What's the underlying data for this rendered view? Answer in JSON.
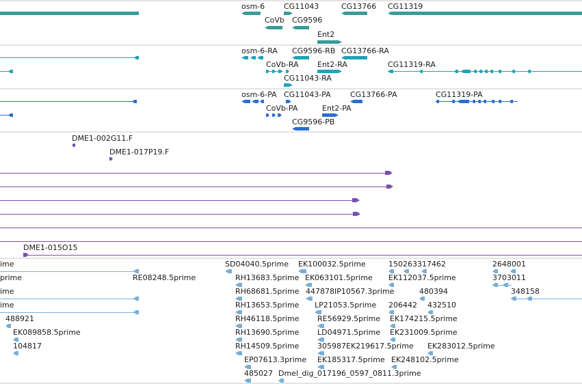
{
  "colors": {
    "gene": "#3a9a98",
    "mrna": "#1ea3b9",
    "protein": "#2a6fd1",
    "clone": "#7b4fae",
    "est": "#7aaed4",
    "divider": "#c8c8c8"
  },
  "tracks": [
    {
      "name": "gene-track",
      "color": "gene",
      "labels": [
        {
          "id": "g-osm6",
          "text": "osm-6"
        },
        {
          "id": "g-cg11043",
          "text": "CG11043"
        },
        {
          "id": "g-cg13766",
          "text": "CG13766"
        },
        {
          "id": "g-cg11319",
          "text": "CG11319"
        },
        {
          "id": "g-covb",
          "text": "CoVb"
        },
        {
          "id": "g-cg9596",
          "text": "CG9596"
        },
        {
          "id": "g-ent2",
          "text": "Ent2"
        }
      ]
    },
    {
      "name": "transcript-track",
      "color": "mrna",
      "labels": [
        {
          "id": "t-osm6",
          "text": "osm-6-RA"
        },
        {
          "id": "t-cg9596",
          "text": "CG9596-RB"
        },
        {
          "id": "t-cg13766",
          "text": "CG13766-RA"
        },
        {
          "id": "t-covb",
          "text": "CoVb-RA"
        },
        {
          "id": "t-ent2",
          "text": "Ent2-RA"
        },
        {
          "id": "t-cg11319",
          "text": "CG11319-RA"
        },
        {
          "id": "t-cg11043",
          "text": "CG11043-RA"
        }
      ]
    },
    {
      "name": "protein-track",
      "color": "protein",
      "labels": [
        {
          "id": "p-osm6",
          "text": "osm-6-PA"
        },
        {
          "id": "p-cg11043",
          "text": "CG11043-PA"
        },
        {
          "id": "p-cg13766",
          "text": "CG13766-PA"
        },
        {
          "id": "p-cg11319",
          "text": "CG11319-PA"
        },
        {
          "id": "p-covb",
          "text": "CoVb-PA"
        },
        {
          "id": "p-ent2",
          "text": "Ent2-PA"
        },
        {
          "id": "p-cg9596",
          "text": "CG9596-PB"
        }
      ]
    },
    {
      "name": "clone-track",
      "color": "clone",
      "labels": [
        {
          "id": "c-002g11",
          "text": "DME1-002G11.F"
        },
        {
          "id": "c-017p19",
          "text": "DME1-017P19.F"
        },
        {
          "id": "c-015o15",
          "text": "DME1-015O15"
        }
      ]
    },
    {
      "name": "est-track",
      "color": "est",
      "labels": [
        {
          "id": "e1",
          "text": "ime"
        },
        {
          "id": "e2",
          "text": "SD04040.5prime"
        },
        {
          "id": "e3",
          "text": "EK100032.5prime"
        },
        {
          "id": "e4",
          "text": "150263317462"
        },
        {
          "id": "e5",
          "text": "2648001"
        },
        {
          "id": "e6",
          "text": "prime"
        },
        {
          "id": "e7",
          "text": "RE08248.5prime"
        },
        {
          "id": "e8",
          "text": "RH13683.5prime"
        },
        {
          "id": "e9",
          "text": "EK063101.5prime"
        },
        {
          "id": "e10",
          "text": "EK112037.5prime"
        },
        {
          "id": "e11",
          "text": "3703011"
        },
        {
          "id": "e12",
          "text": "ime"
        },
        {
          "id": "e13",
          "text": "RH68681.5prime"
        },
        {
          "id": "e14",
          "text": "447878IP10567.3prime"
        },
        {
          "id": "e15",
          "text": "480394"
        },
        {
          "id": "e16",
          "text": "348158"
        },
        {
          "id": "e17",
          "text": "ime"
        },
        {
          "id": "e18",
          "text": "RH13653.5prime"
        },
        {
          "id": "e19",
          "text": "LP21053.5prime"
        },
        {
          "id": "e20",
          "text": "206442"
        },
        {
          "id": "e21",
          "text": "432510"
        },
        {
          "id": "e22",
          "text": "488921"
        },
        {
          "id": "e23",
          "text": "RH46118.5prime"
        },
        {
          "id": "e24",
          "text": "RE56929.5prime"
        },
        {
          "id": "e25",
          "text": "EK174215.5prime"
        },
        {
          "id": "e26",
          "text": "EK089858.5prime"
        },
        {
          "id": "e27",
          "text": "RH13690.5prime"
        },
        {
          "id": "e28",
          "text": "LD04971.5prime"
        },
        {
          "id": "e29",
          "text": "EK231009.5prime"
        },
        {
          "id": "e30",
          "text": "104817"
        },
        {
          "id": "e31",
          "text": "RH14509.5prime"
        },
        {
          "id": "e32",
          "text": "305987EK219617.5prime"
        },
        {
          "id": "e33",
          "text": "EK283012.5prime"
        },
        {
          "id": "e34",
          "text": "EP07613.3prime"
        },
        {
          "id": "e35",
          "text": "EK185317.5prime"
        },
        {
          "id": "e36",
          "text": "EK248102.5prime"
        },
        {
          "id": "e37",
          "text": "485027"
        },
        {
          "id": "e38",
          "text": "Dmel_dig_017196_0597_0811.3prime"
        }
      ]
    }
  ]
}
